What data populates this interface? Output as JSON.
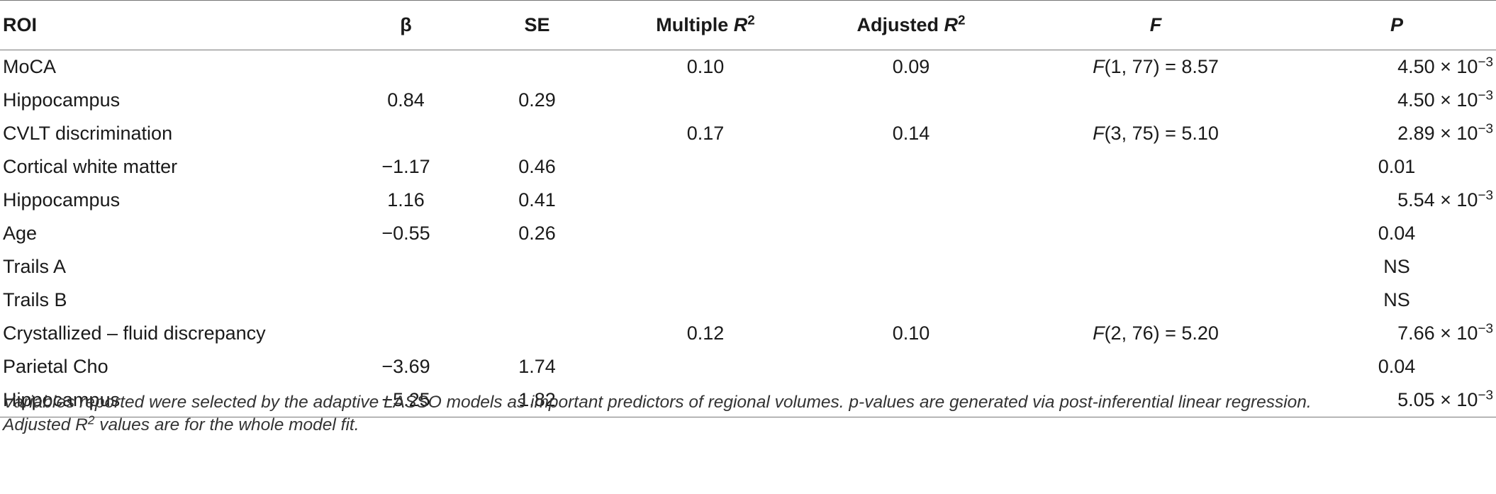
{
  "header": {
    "roi": "ROI",
    "beta": "β",
    "se": "SE",
    "multiple_r2_prefix": "Multiple ",
    "adjusted_r2_prefix": "Adjusted ",
    "r_letter": "R",
    "r_exp": "2",
    "f": "F",
    "p": "P"
  },
  "rows": [
    {
      "name": "MoCA",
      "beta": "",
      "se": "",
      "mr2": "0.10",
      "ar2": "0.09",
      "f_letter": "F",
      "f_rest": "(1, 77) = 8.57",
      "p_mant": "4.50 × 10",
      "p_exp": "−3",
      "p_plain": ""
    },
    {
      "name": "Hippocampus",
      "beta": "0.84",
      "se": "0.29",
      "mr2": "",
      "ar2": "",
      "f_letter": "",
      "f_rest": "",
      "p_mant": "4.50 × 10",
      "p_exp": "−3",
      "p_plain": ""
    },
    {
      "name": "CVLT discrimination",
      "beta": "",
      "se": "",
      "mr2": "0.17",
      "ar2": "0.14",
      "f_letter": "F",
      "f_rest": "(3, 75) = 5.10",
      "p_mant": "2.89 × 10",
      "p_exp": "−3",
      "p_plain": ""
    },
    {
      "name": "Cortical white matter",
      "beta": "−1.17",
      "se": "0.46",
      "mr2": "",
      "ar2": "",
      "f_letter": "",
      "f_rest": "",
      "p_mant": "",
      "p_exp": "",
      "p_plain": "0.01"
    },
    {
      "name": "Hippocampus",
      "beta": "1.16",
      "se": "0.41",
      "mr2": "",
      "ar2": "",
      "f_letter": "",
      "f_rest": "",
      "p_mant": "5.54 × 10",
      "p_exp": "−3",
      "p_plain": ""
    },
    {
      "name": "Age",
      "beta": "−0.55",
      "se": "0.26",
      "mr2": "",
      "ar2": "",
      "f_letter": "",
      "f_rest": "",
      "p_mant": "",
      "p_exp": "",
      "p_plain": "0.04"
    },
    {
      "name": "Trails A",
      "beta": "",
      "se": "",
      "mr2": "",
      "ar2": "",
      "f_letter": "",
      "f_rest": "",
      "p_mant": "",
      "p_exp": "",
      "p_plain": "NS"
    },
    {
      "name": "Trails B",
      "beta": "",
      "se": "",
      "mr2": "",
      "ar2": "",
      "f_letter": "",
      "f_rest": "",
      "p_mant": "",
      "p_exp": "",
      "p_plain": "NS"
    },
    {
      "name": "Crystallized – fluid discrepancy",
      "beta": "",
      "se": "",
      "mr2": "0.12",
      "ar2": "0.10",
      "f_letter": "F",
      "f_rest": "(2, 76) = 5.20",
      "p_mant": "7.66 × 10",
      "p_exp": "−3",
      "p_plain": ""
    },
    {
      "name": "Parietal Cho",
      "beta": "−3.69",
      "se": "1.74",
      "mr2": "",
      "ar2": "",
      "f_letter": "",
      "f_rest": "",
      "p_mant": "",
      "p_exp": "",
      "p_plain": "0.04"
    },
    {
      "name": "Hippocampus",
      "beta": "−5.25",
      "se": "1.82",
      "mr2": "",
      "ar2": "",
      "f_letter": "",
      "f_rest": "",
      "p_mant": "5.05 × 10",
      "p_exp": "−3",
      "p_plain": ""
    }
  ],
  "footnote": {
    "line1": "Variables reported were selected by the adaptive LASSO models as important predictors of regional volumes. p-values are generated via post-inferential linear regression.",
    "line2_prefix": "Adjusted ",
    "line2_r": "R",
    "line2_exp": "2",
    "line2_suffix": " values are for the whole model fit."
  }
}
